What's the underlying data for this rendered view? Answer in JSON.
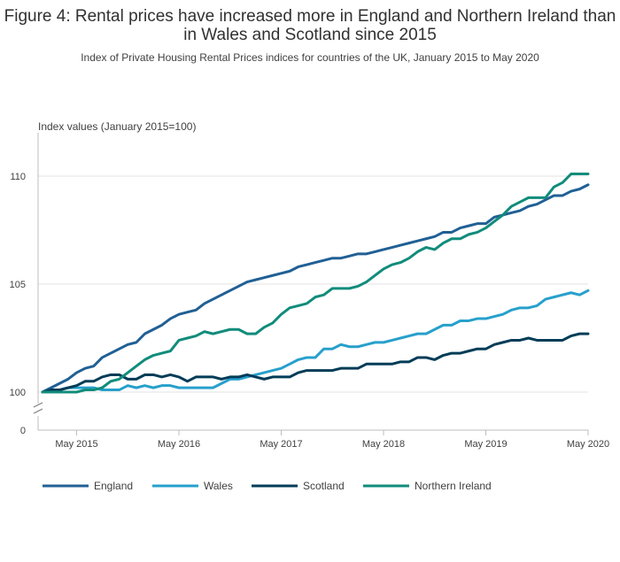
{
  "header": {
    "title": "Figure 4: Rental prices have increased more in England and Northern Ireland than in Wales and Scotland since 2015",
    "subtitle": "Index of Private Housing Rental Prices indices for countries of the UK, January 2015 to May 2020"
  },
  "chart_data": {
    "type": "line",
    "title": "Figure 4: Rental prices have increased more in England and Northern Ireland than in Wales and Scotland since 2015",
    "subtitle": "Index of Private Housing Rental Prices indices for countries of the UK, January 2015 to May 2020",
    "ylabel": "Index values (January 2015=100)",
    "xlabel": "",
    "ylim": [
      100,
      112
    ],
    "y_ticks": [
      "110",
      "105",
      "100",
      "0"
    ],
    "y_tick_values": [
      110,
      105,
      100
    ],
    "axis_break": true,
    "x_ticks": [
      "May 2015",
      "May 2016",
      "May 2017",
      "May 2018",
      "May 2019",
      "May 2020"
    ],
    "x_tick_index": [
      4,
      16,
      28,
      40,
      52,
      64
    ],
    "x_start": "January 2015",
    "x_end": "May 2020",
    "colors": {
      "England": "#206095",
      "Wales": "#27a0cc",
      "Scotland": "#003c57",
      "Northern Ireland": "#118c7b"
    },
    "series": [
      {
        "name": "England",
        "values": [
          100.0,
          100.2,
          100.4,
          100.6,
          100.9,
          101.1,
          101.2,
          101.6,
          101.8,
          102.0,
          102.2,
          102.3,
          102.7,
          102.9,
          103.1,
          103.4,
          103.6,
          103.7,
          103.8,
          104.1,
          104.3,
          104.5,
          104.7,
          104.9,
          105.1,
          105.2,
          105.3,
          105.4,
          105.5,
          105.6,
          105.8,
          105.9,
          106.0,
          106.1,
          106.2,
          106.2,
          106.3,
          106.4,
          106.4,
          106.5,
          106.6,
          106.7,
          106.8,
          106.9,
          107.0,
          107.1,
          107.2,
          107.4,
          107.4,
          107.6,
          107.7,
          107.8,
          107.8,
          108.1,
          108.2,
          108.3,
          108.4,
          108.6,
          108.7,
          108.9,
          109.1,
          109.1,
          109.3,
          109.4,
          109.6
        ]
      },
      {
        "name": "Wales",
        "values": [
          100.0,
          100.1,
          100.1,
          100.2,
          100.2,
          100.2,
          100.2,
          100.1,
          100.1,
          100.1,
          100.3,
          100.2,
          100.3,
          100.2,
          100.3,
          100.3,
          100.2,
          100.2,
          100.2,
          100.2,
          100.2,
          100.4,
          100.6,
          100.6,
          100.7,
          100.8,
          100.9,
          101.0,
          101.1,
          101.3,
          101.5,
          101.6,
          101.6,
          102.0,
          102.0,
          102.2,
          102.1,
          102.1,
          102.2,
          102.3,
          102.3,
          102.4,
          102.5,
          102.6,
          102.7,
          102.7,
          102.9,
          103.1,
          103.1,
          103.3,
          103.3,
          103.4,
          103.4,
          103.5,
          103.6,
          103.8,
          103.9,
          103.9,
          104.0,
          104.3,
          104.4,
          104.5,
          104.6,
          104.5,
          104.7
        ]
      },
      {
        "name": "Scotland",
        "values": [
          100.0,
          100.1,
          100.1,
          100.2,
          100.3,
          100.5,
          100.5,
          100.7,
          100.8,
          100.8,
          100.6,
          100.6,
          100.8,
          100.8,
          100.7,
          100.8,
          100.7,
          100.5,
          100.7,
          100.7,
          100.7,
          100.6,
          100.7,
          100.7,
          100.8,
          100.7,
          100.6,
          100.7,
          100.7,
          100.7,
          100.9,
          101.0,
          101.0,
          101.0,
          101.0,
          101.1,
          101.1,
          101.1,
          101.3,
          101.3,
          101.3,
          101.3,
          101.4,
          101.4,
          101.6,
          101.6,
          101.5,
          101.7,
          101.8,
          101.8,
          101.9,
          102.0,
          102.0,
          102.2,
          102.3,
          102.4,
          102.4,
          102.5,
          102.4,
          102.4,
          102.4,
          102.4,
          102.6,
          102.7,
          102.7
        ]
      },
      {
        "name": "Northern Ireland",
        "values": [
          100.0,
          100.0,
          100.0,
          100.0,
          100.0,
          100.1,
          100.1,
          100.2,
          100.5,
          100.6,
          100.9,
          101.2,
          101.5,
          101.7,
          101.8,
          101.9,
          102.4,
          102.5,
          102.6,
          102.8,
          102.7,
          102.8,
          102.9,
          102.9,
          102.7,
          102.7,
          103.0,
          103.2,
          103.6,
          103.9,
          104.0,
          104.1,
          104.4,
          104.5,
          104.8,
          104.8,
          104.8,
          104.9,
          105.1,
          105.4,
          105.7,
          105.9,
          106.0,
          106.2,
          106.5,
          106.7,
          106.6,
          106.9,
          107.1,
          107.1,
          107.3,
          107.4,
          107.6,
          107.9,
          108.2,
          108.6,
          108.8,
          109.0,
          109.0,
          109.0,
          109.5,
          109.7,
          110.1,
          110.1,
          110.1
        ]
      }
    ],
    "legend_position": "bottom"
  }
}
